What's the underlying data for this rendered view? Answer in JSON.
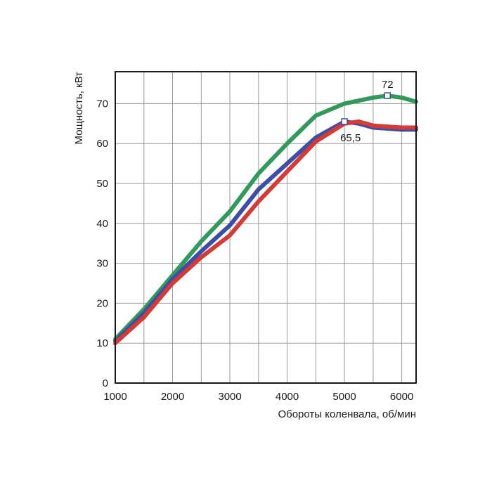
{
  "chart_data": {
    "type": "line",
    "title": "",
    "xlabel": "Обороты коленвала, об/мин",
    "ylabel": "Мощность, кВт",
    "xlim": [
      1000,
      6250
    ],
    "ylim": [
      0,
      78
    ],
    "x_ticks": [
      1000,
      2000,
      3000,
      4000,
      5000,
      6000
    ],
    "y_ticks": [
      0,
      10,
      20,
      30,
      40,
      50,
      60,
      70
    ],
    "x_tick_labels": [
      "1000",
      "2000",
      "3000",
      "4000",
      "5000",
      "6000"
    ],
    "y_tick_labels": [
      "0",
      "10",
      "20",
      "30",
      "40",
      "50",
      "60",
      "70"
    ],
    "grid": true,
    "legend": "none",
    "series": [
      {
        "color": "#2f9a5a",
        "x": [
          1000,
          1500,
          2000,
          2500,
          3000,
          3500,
          4000,
          4500,
          5000,
          5500,
          5750,
          6000,
          6250
        ],
        "y": [
          11,
          18.5,
          27,
          35.5,
          43,
          52.5,
          60,
          67,
          70,
          71.5,
          72,
          71.5,
          70.5
        ]
      },
      {
        "color": "#3b4fa8",
        "x": [
          1000,
          1500,
          2000,
          2500,
          3000,
          3500,
          4000,
          4500,
          5000,
          5250,
          5500,
          6000,
          6250
        ],
        "y": [
          10.5,
          17.5,
          26,
          33,
          39.5,
          48.5,
          55,
          61.5,
          65.5,
          65,
          64,
          63.5,
          63.5
        ]
      },
      {
        "color": "#d63a35",
        "x": [
          1000,
          1500,
          2000,
          2500,
          3000,
          3500,
          4000,
          4500,
          5000,
          5250,
          5500,
          6000,
          6250
        ],
        "y": [
          10,
          16.5,
          25,
          31.5,
          37,
          45.5,
          53,
          60.5,
          65,
          65.5,
          64.5,
          64,
          64
        ]
      }
    ],
    "annotations": [
      {
        "x": 5000,
        "y": 65.5,
        "label": "65,5",
        "position": "below-right"
      },
      {
        "x": 5750,
        "y": 72,
        "label": "72",
        "position": "above"
      }
    ]
  }
}
